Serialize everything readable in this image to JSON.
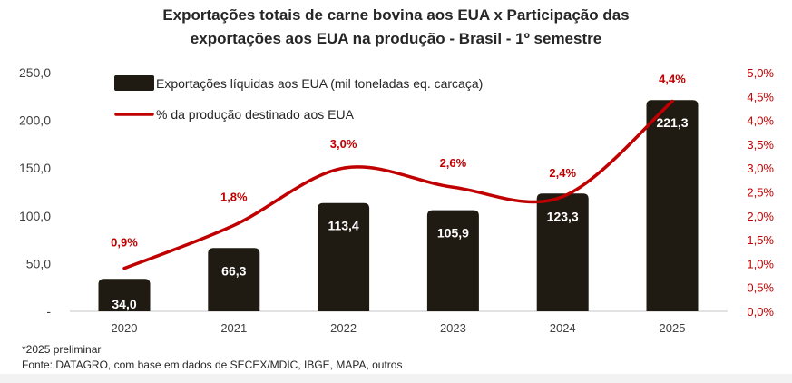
{
  "chart_data": {
    "type": "bar",
    "combo": "bar+line",
    "title": "Exportações totais de carne bovina aos EUA x Participação das exportações aos EUA na produção - Brasil - 1º semestre",
    "title_lines": [
      "Exportações totais de carne bovina aos EUA x Participação das",
      "exportações aos EUA na produção - Brasil - 1º semestre"
    ],
    "categories": [
      "2020",
      "2021",
      "2022",
      "2023",
      "2024",
      "2025"
    ],
    "series": [
      {
        "name": "Exportações líquidas aos EUA (mil toneladas eq. carcaça)",
        "type": "bar",
        "axis": "left",
        "color": "#1f1a12",
        "values": [
          34.0,
          66.3,
          113.4,
          105.9,
          123.3,
          221.3
        ],
        "labels": [
          "34,0",
          "66,3",
          "113,4",
          "105,9",
          "123,3",
          "221,3"
        ]
      },
      {
        "name": "% da produção destinado aos EUA",
        "type": "line",
        "smooth": true,
        "axis": "right",
        "color": "#c00000",
        "values": [
          0.9,
          1.8,
          3.0,
          2.6,
          2.4,
          4.4
        ],
        "labels": [
          "0,9%",
          "1,8%",
          "3,0%",
          "2,6%",
          "2,4%",
          "4,4%"
        ]
      }
    ],
    "y_left": {
      "ylim": [
        0,
        250
      ],
      "ticks": [
        0,
        50,
        100,
        150,
        200,
        250
      ],
      "tick_labels": [
        "-",
        "50,0",
        "100,0",
        "150,0",
        "200,0",
        "250,0"
      ]
    },
    "y_right": {
      "ylim": [
        0,
        5
      ],
      "ticks": [
        0,
        0.5,
        1,
        1.5,
        2,
        2.5,
        3,
        3.5,
        4,
        4.5,
        5
      ],
      "tick_labels": [
        "0,0%",
        "0,5%",
        "1,0%",
        "1,5%",
        "2,0%",
        "2,5%",
        "3,0%",
        "3,5%",
        "4,0%",
        "4,5%",
        "5,0%"
      ],
      "color": "#c00000"
    },
    "xlabel": "",
    "ylabel": "",
    "grid": false,
    "legend": {
      "placement": "top-left"
    }
  },
  "footnotes": {
    "note": "*2025 preliminar",
    "source": "Fonte: DATAGRO, com base em dados de SECEX/MDIC, IBGE, MAPA, outros"
  }
}
